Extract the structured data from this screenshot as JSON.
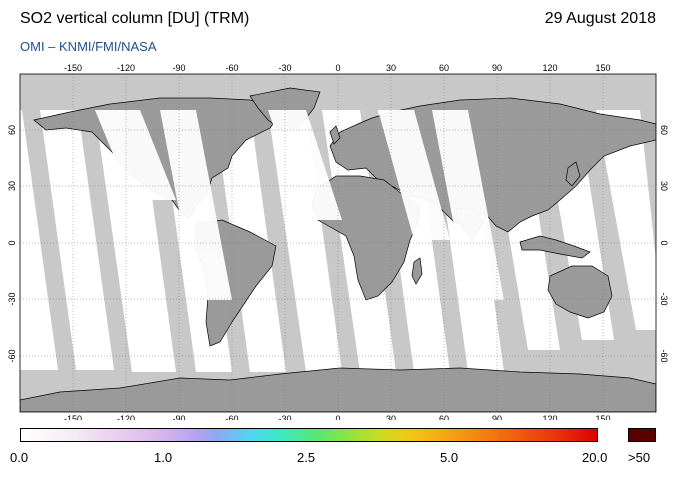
{
  "header": {
    "title": "SO2 vertical column [DU] (TRM)",
    "date": "29 August 2018",
    "credit": "OMI  –  KNMI/FMI/NASA"
  },
  "map": {
    "lon_ticks": [
      "-150",
      "-120",
      "-90",
      "-60",
      "-30",
      "0",
      "30",
      "60",
      "90",
      "120",
      "150"
    ],
    "lat_ticks": [
      "60",
      "30",
      "0",
      "-30",
      "-60"
    ],
    "lat_ticks_right": [
      "60",
      "30",
      "0",
      "-30",
      "-60"
    ],
    "colors": {
      "land_no_data": "#9a9a9a",
      "ocean_no_data": "#c8c8c8",
      "land_data": "#ffffff",
      "coastline": "#000000"
    }
  },
  "colorbar": {
    "labels": [
      "0.0",
      "1.0",
      "2.5",
      "5.0",
      "20.0"
    ],
    "overflow_label": ">50",
    "overflow_color": "#5a0000"
  }
}
